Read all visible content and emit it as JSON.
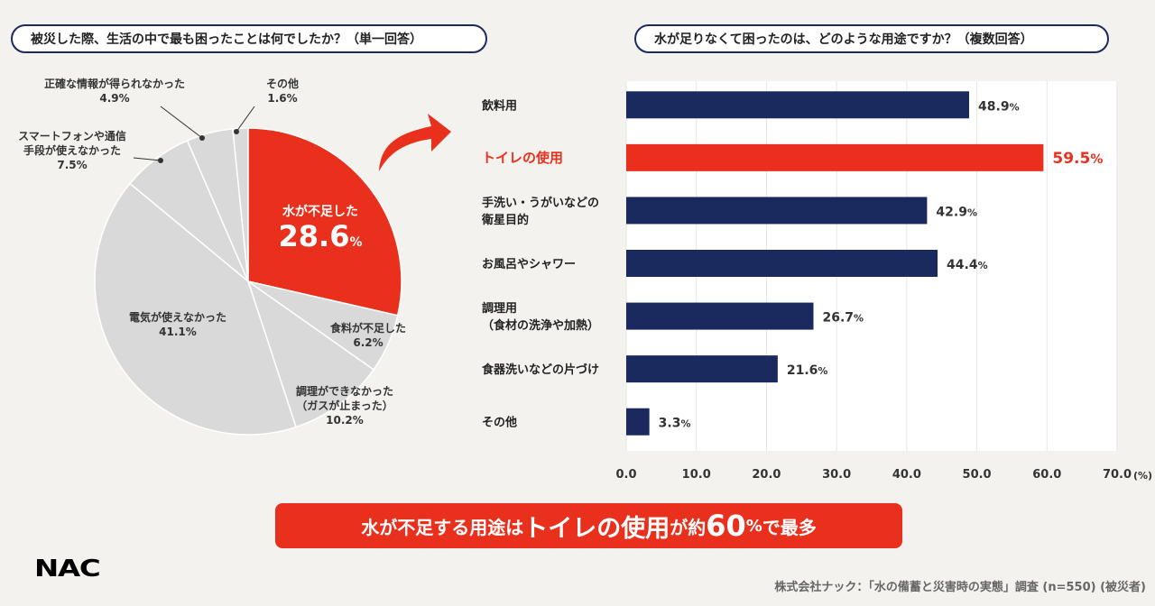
{
  "left_title": "被災した際、生活の中で最も困ったことは何でしたか？（単一回答）",
  "right_title": "水が足りなくて困ったのは、どのような用途ですか？（複数回答）",
  "chart_data": [
    {
      "type": "pie",
      "title": "被災した際、生活の中で最も困ったことは何でしたか？（単一回答）",
      "slices": [
        {
          "lines": [
            "水が不足した"
          ],
          "value": 28.6,
          "pct": "28.6",
          "highlight": true
        },
        {
          "lines": [
            "食料が不足した"
          ],
          "value": 6.2,
          "pct": "6.2%"
        },
        {
          "lines": [
            "調理ができなかった",
            "（ガスが止まった）"
          ],
          "value": 10.2,
          "pct": "10.2%"
        },
        {
          "lines": [
            "電気が使えなかった"
          ],
          "value": 41.1,
          "pct": "41.1%"
        },
        {
          "lines": [
            "スマートフォンや通信",
            "手段が使えなかった"
          ],
          "value": 7.5,
          "pct": "7.5%"
        },
        {
          "lines": [
            "正確な情報が得られなかった"
          ],
          "value": 4.9,
          "pct": "4.9%"
        },
        {
          "lines": [
            "その他"
          ],
          "value": 1.6,
          "pct": "1.6%"
        }
      ],
      "pct_suffix": "%"
    },
    {
      "type": "bar",
      "orientation": "horizontal",
      "title": "水が足りなくて困ったのは、どのような用途ですか？（複数回答）",
      "categories": [
        [
          "飲料用"
        ],
        [
          "トイレの使用"
        ],
        [
          "手洗い・うがいなどの",
          "衛星目的"
        ],
        [
          "お風呂やシャワー"
        ],
        [
          "調理用",
          "（食材の洗浄や加熱）"
        ],
        [
          "食器洗いなどの片づけ"
        ],
        [
          "その他"
        ]
      ],
      "values": [
        48.9,
        59.5,
        42.9,
        44.4,
        26.7,
        21.6,
        3.3
      ],
      "value_labels": [
        "48.9",
        "59.5",
        "42.9",
        "44.4",
        "26.7",
        "21.6",
        "3.3"
      ],
      "highlight_index": 1,
      "xlim": [
        0,
        70
      ],
      "xticks": [
        "0.0",
        "10.0",
        "20.0",
        "30.0",
        "40.0",
        "50.0",
        "60.0",
        "70.0"
      ],
      "x_unit": "(%)",
      "pct_suffix": "%"
    }
  ],
  "colors": {
    "navy": "#1a2a5e",
    "red": "#e8301c",
    "gray": "#d9d9d9",
    "pie_line": "#ffffff"
  },
  "banner": {
    "part1": "水が不足する用途は",
    "part2": "トイレの使用",
    "part3": "が約",
    "number": "60",
    "unit": "%",
    "part4": "で最多"
  },
  "logo": "NAC",
  "source": "株式会社ナック：「水の備蓄と災害時の実態」調査 (n=550) (被災者)"
}
